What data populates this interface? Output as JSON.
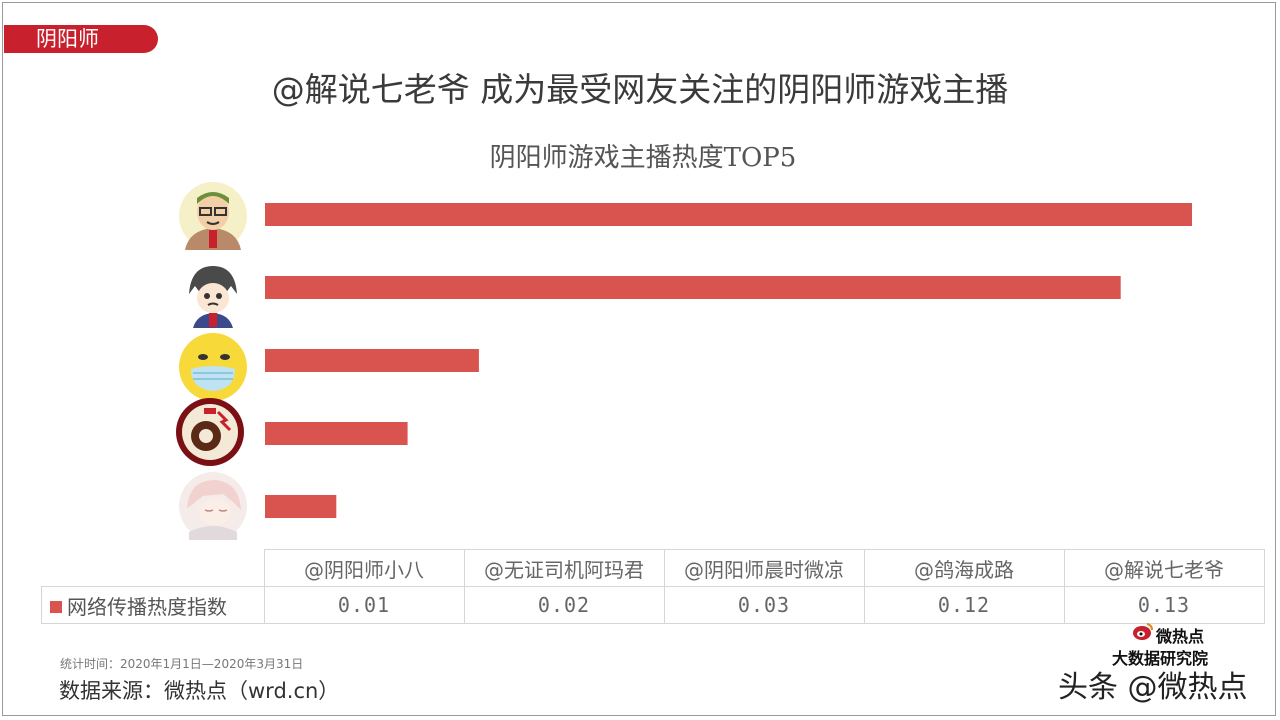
{
  "header": {
    "tag": "阴阳师"
  },
  "main_title": "@解说七老爷 成为最受网友关注的阴阳师游戏主播",
  "chart_data": {
    "type": "bar",
    "orientation": "horizontal",
    "title": "阴阳师游戏主播热度TOP5",
    "categories": [
      "@解说七老爷",
      "@鸽海成路",
      "@阴阳师晨时微凉",
      "@无证司机阿玛君",
      "@阴阳师小八"
    ],
    "series": [
      {
        "name": "网络传播热度指数",
        "values": [
          0.13,
          0.12,
          0.03,
          0.02,
          0.01
        ],
        "color": "#d9534f"
      }
    ],
    "xlim": [
      0,
      0.13
    ],
    "grid": false,
    "legend": "in-table"
  },
  "data_table": {
    "headers": [
      "@阴阳师小八",
      "@无证司机阿玛君",
      "@阴阳师晨时微凉",
      "@鸽海成路",
      "@解说七老爷"
    ],
    "series_label": "网络传播热度指数",
    "values": [
      "0.01",
      "0.02",
      "0.03",
      "0.12",
      "0.13"
    ]
  },
  "avatars": [
    "avatar-glasses-man-icon",
    "avatar-anime-boy-icon",
    "avatar-yellow-mask-icon",
    "avatar-red-emblem-icon",
    "avatar-sleeping-girl-icon"
  ],
  "footer": {
    "stat_time": "统计时间：2020年1月1日—2020年3月31日",
    "source": "数据来源：微热点（wrd.cn）"
  },
  "logo": {
    "name": "微热点",
    "sub": "大数据研究院"
  },
  "watermark": "头条 @微热点"
}
